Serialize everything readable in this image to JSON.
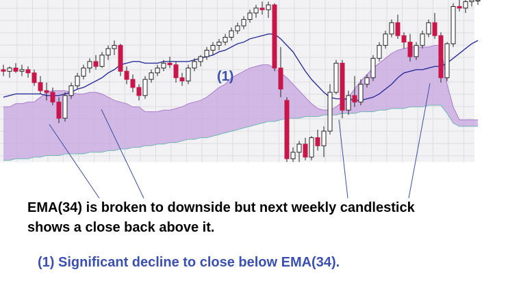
{
  "chart_data": {
    "type": "candlestick",
    "title": "",
    "xlabel": "",
    "ylabel": "",
    "grid": true,
    "interval": "weekly",
    "ylim": [
      0,
      100
    ],
    "candles": [
      {
        "o": 57,
        "h": 60,
        "l": 53,
        "c": 56
      },
      {
        "o": 56,
        "h": 59,
        "l": 52,
        "c": 58
      },
      {
        "o": 58,
        "h": 61,
        "l": 55,
        "c": 56
      },
      {
        "o": 56,
        "h": 60,
        "l": 53,
        "c": 57
      },
      {
        "o": 57,
        "h": 59,
        "l": 52,
        "c": 55
      },
      {
        "o": 55,
        "h": 57,
        "l": 47,
        "c": 49
      },
      {
        "o": 49,
        "h": 53,
        "l": 42,
        "c": 44
      },
      {
        "o": 44,
        "h": 49,
        "l": 38,
        "c": 43
      },
      {
        "o": 43,
        "h": 46,
        "l": 35,
        "c": 37
      },
      {
        "o": 37,
        "h": 40,
        "l": 24,
        "c": 27
      },
      {
        "o": 27,
        "h": 43,
        "l": 25,
        "c": 41
      },
      {
        "o": 41,
        "h": 49,
        "l": 39,
        "c": 47
      },
      {
        "o": 47,
        "h": 55,
        "l": 45,
        "c": 53
      },
      {
        "o": 53,
        "h": 60,
        "l": 51,
        "c": 58
      },
      {
        "o": 58,
        "h": 64,
        "l": 55,
        "c": 62
      },
      {
        "o": 62,
        "h": 66,
        "l": 57,
        "c": 59
      },
      {
        "o": 59,
        "h": 68,
        "l": 58,
        "c": 66
      },
      {
        "o": 66,
        "h": 72,
        "l": 63,
        "c": 70
      },
      {
        "o": 70,
        "h": 75,
        "l": 66,
        "c": 72
      },
      {
        "o": 72,
        "h": 73,
        "l": 53,
        "c": 56
      },
      {
        "o": 56,
        "h": 59,
        "l": 48,
        "c": 51
      },
      {
        "o": 51,
        "h": 54,
        "l": 43,
        "c": 46
      },
      {
        "o": 46,
        "h": 48,
        "l": 38,
        "c": 41
      },
      {
        "o": 41,
        "h": 53,
        "l": 39,
        "c": 51
      },
      {
        "o": 51,
        "h": 57,
        "l": 49,
        "c": 55
      },
      {
        "o": 55,
        "h": 60,
        "l": 53,
        "c": 58
      },
      {
        "o": 58,
        "h": 63,
        "l": 56,
        "c": 61
      },
      {
        "o": 61,
        "h": 65,
        "l": 58,
        "c": 60
      },
      {
        "o": 60,
        "h": 62,
        "l": 49,
        "c": 52
      },
      {
        "o": 52,
        "h": 55,
        "l": 47,
        "c": 50
      },
      {
        "o": 50,
        "h": 60,
        "l": 48,
        "c": 58
      },
      {
        "o": 58,
        "h": 64,
        "l": 56,
        "c": 62
      },
      {
        "o": 62,
        "h": 66,
        "l": 59,
        "c": 65
      },
      {
        "o": 65,
        "h": 71,
        "l": 63,
        "c": 69
      },
      {
        "o": 69,
        "h": 74,
        "l": 66,
        "c": 72
      },
      {
        "o": 72,
        "h": 76,
        "l": 69,
        "c": 74
      },
      {
        "o": 74,
        "h": 79,
        "l": 72,
        "c": 77
      },
      {
        "o": 77,
        "h": 83,
        "l": 75,
        "c": 81
      },
      {
        "o": 81,
        "h": 86,
        "l": 79,
        "c": 84
      },
      {
        "o": 84,
        "h": 90,
        "l": 82,
        "c": 88
      },
      {
        "o": 88,
        "h": 94,
        "l": 86,
        "c": 92
      },
      {
        "o": 92,
        "h": 97,
        "l": 89,
        "c": 95
      },
      {
        "o": 95,
        "h": 99,
        "l": 91,
        "c": 94
      },
      {
        "o": 94,
        "h": 99,
        "l": 89,
        "c": 97
      },
      {
        "o": 97,
        "h": 98,
        "l": 56,
        "c": 58
      },
      {
        "o": 58,
        "h": 71,
        "l": 40,
        "c": 45
      },
      {
        "o": 38,
        "h": 40,
        "l": 0,
        "c": 2
      },
      {
        "o": 2,
        "h": 9,
        "l": 0,
        "c": 6
      },
      {
        "o": 6,
        "h": 13,
        "l": 0,
        "c": 11
      },
      {
        "o": 11,
        "h": 15,
        "l": 1,
        "c": 3
      },
      {
        "o": 3,
        "h": 16,
        "l": 1,
        "c": 15
      },
      {
        "o": 15,
        "h": 20,
        "l": 7,
        "c": 10
      },
      {
        "o": 10,
        "h": 22,
        "l": 3,
        "c": 19
      },
      {
        "o": 19,
        "h": 48,
        "l": 17,
        "c": 43
      },
      {
        "o": 43,
        "h": 63,
        "l": 42,
        "c": 61
      },
      {
        "o": 61,
        "h": 63,
        "l": 27,
        "c": 32
      },
      {
        "o": 32,
        "h": 44,
        "l": 29,
        "c": 41
      },
      {
        "o": 41,
        "h": 53,
        "l": 34,
        "c": 37
      },
      {
        "o": 37,
        "h": 51,
        "l": 35,
        "c": 48
      },
      {
        "o": 48,
        "h": 54,
        "l": 46,
        "c": 52
      },
      {
        "o": 52,
        "h": 66,
        "l": 50,
        "c": 64
      },
      {
        "o": 64,
        "h": 74,
        "l": 62,
        "c": 72
      },
      {
        "o": 72,
        "h": 81,
        "l": 70,
        "c": 79
      },
      {
        "o": 79,
        "h": 88,
        "l": 77,
        "c": 86
      },
      {
        "o": 86,
        "h": 91,
        "l": 76,
        "c": 78
      },
      {
        "o": 78,
        "h": 80,
        "l": 70,
        "c": 74
      },
      {
        "o": 74,
        "h": 79,
        "l": 62,
        "c": 65
      },
      {
        "o": 65,
        "h": 74,
        "l": 63,
        "c": 72
      },
      {
        "o": 72,
        "h": 81,
        "l": 70,
        "c": 79
      },
      {
        "o": 79,
        "h": 88,
        "l": 77,
        "c": 86
      },
      {
        "o": 86,
        "h": 92,
        "l": 76,
        "c": 78
      },
      {
        "o": 78,
        "h": 80,
        "l": 49,
        "c": 52
      },
      {
        "o": 52,
        "h": 74,
        "l": 50,
        "c": 73
      },
      {
        "o": 73,
        "h": 98,
        "l": 71,
        "c": 96
      },
      {
        "o": 96,
        "h": 100,
        "l": 93,
        "c": 95
      },
      {
        "o": 95,
        "h": 100,
        "l": 92,
        "c": 99
      },
      {
        "o": 99,
        "h": 100,
        "l": 96,
        "c": 100
      },
      {
        "o": 100,
        "h": 100,
        "l": 97,
        "c": 100
      }
    ],
    "ema34": [
      40,
      41,
      42,
      42,
      42,
      42,
      42,
      41,
      41,
      41,
      42,
      43,
      45,
      46,
      48,
      50,
      52,
      55,
      57,
      60,
      61,
      62,
      62,
      61,
      61,
      61,
      62,
      62,
      62,
      62,
      62,
      63,
      64,
      65,
      66,
      68,
      69,
      71,
      73,
      74,
      76,
      77,
      78,
      79,
      79,
      76,
      72,
      68,
      62,
      56,
      51,
      47,
      43,
      40,
      39,
      39,
      39,
      38,
      38,
      39,
      40,
      42,
      45,
      48,
      52,
      55,
      56,
      57,
      57,
      58,
      59,
      59,
      61,
      64,
      67,
      70,
      73,
      75
    ],
    "cloud_a": [
      34,
      34,
      36,
      36,
      37,
      37,
      40,
      43,
      44,
      44,
      44,
      43,
      42,
      42,
      43,
      43,
      42,
      40,
      38,
      37,
      36,
      34,
      34,
      31,
      31,
      31,
      32,
      32,
      33,
      34,
      36,
      37,
      38,
      40,
      43,
      46,
      48,
      52,
      54,
      56,
      58,
      59,
      60,
      60,
      58,
      55,
      52,
      48,
      44,
      40,
      36,
      33,
      32,
      32,
      34,
      37,
      40,
      45,
      50,
      54,
      58,
      61,
      64,
      67,
      69,
      70,
      71,
      71,
      71,
      71,
      72,
      72,
      48,
      34,
      26,
      26,
      26,
      26
    ],
    "cloud_b": [
      1,
      1,
      2,
      2,
      2,
      3,
      3,
      4,
      4,
      4,
      5,
      5,
      5,
      5,
      6,
      6,
      6,
      7,
      7,
      8,
      8,
      9,
      9,
      10,
      10,
      11,
      11,
      12,
      12,
      13,
      14,
      14,
      15,
      15,
      16,
      17,
      18,
      19,
      20,
      21,
      22,
      23,
      24,
      25,
      25,
      26,
      27,
      27,
      27,
      28,
      28,
      28,
      29,
      29,
      29,
      30,
      30,
      30,
      31,
      31,
      31,
      32,
      32,
      33,
      33,
      33,
      34,
      34,
      34,
      35,
      35,
      35,
      30,
      24,
      22,
      22,
      22,
      22
    ],
    "label_1": "(1)"
  },
  "annotations": {
    "main_line1": "EMA(34) is broken to downside but next weekly candlestick",
    "main_line2": "shows a close back above it.",
    "note_1": "(1)  Significant decline to close below EMA(34)."
  },
  "colors": {
    "bull_candle": "#ffffff",
    "bear_candle": "#c8154a",
    "candle_outline": "#222222",
    "ema": "#2a2f9a",
    "cloud_fill": "#c7a6e0",
    "cloud_edge_a": "#a97ccb",
    "cloud_edge_b": "#6fb5b5",
    "annotation_blue": "#3b4fb0",
    "pointer_line": "#3a4e9e"
  }
}
